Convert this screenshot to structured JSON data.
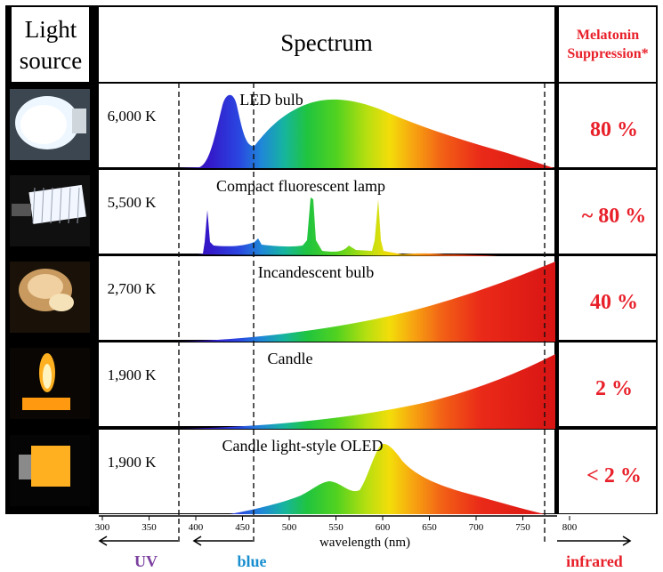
{
  "header": {
    "light_source": [
      "Light",
      "source"
    ],
    "spectrum": "Spectrum",
    "melatonin": [
      "Melatonin",
      "Suppression*"
    ]
  },
  "rows": [
    {
      "source": "LED bulb",
      "temperature": "6,000 K",
      "suppression": "80 %",
      "kind": "led",
      "icon": "led-bulb-icon"
    },
    {
      "source": "Compact fluorescent lamp",
      "temperature": "5,500 K",
      "suppression": "~ 80 %",
      "kind": "cfl",
      "icon": "fluorescent-lamp-icon"
    },
    {
      "source": "Incandescent bulb",
      "temperature": "2,700 K",
      "suppression": "40 %",
      "kind": "incandescent",
      "icon": "incandescent-bulb-icon"
    },
    {
      "source": "Candle",
      "temperature": "1,900 K",
      "suppression": "2 %",
      "kind": "candle",
      "icon": "candle-icon"
    },
    {
      "source": "Candle light-style OLED",
      "temperature": "1,900 K",
      "suppression": "< 2 %",
      "kind": "oled",
      "icon": "oled-icon"
    }
  ],
  "axis": {
    "label": "wavelength  (nm)",
    "ticks": [
      300,
      350,
      400,
      450,
      500,
      550,
      600,
      650,
      700,
      750,
      800
    ],
    "range_nm": [
      300,
      800
    ]
  },
  "bands": [
    {
      "label": "UV",
      "color": "#7b3fa0",
      "to_nm": 380
    },
    {
      "label": "blue",
      "color": "#1a8fd0",
      "from_nm": 380,
      "to_nm": 460
    },
    {
      "label": "infrared",
      "color": "#e8202a",
      "from_nm": 780
    }
  ],
  "colors": {
    "suppression": "#e8202a"
  }
}
